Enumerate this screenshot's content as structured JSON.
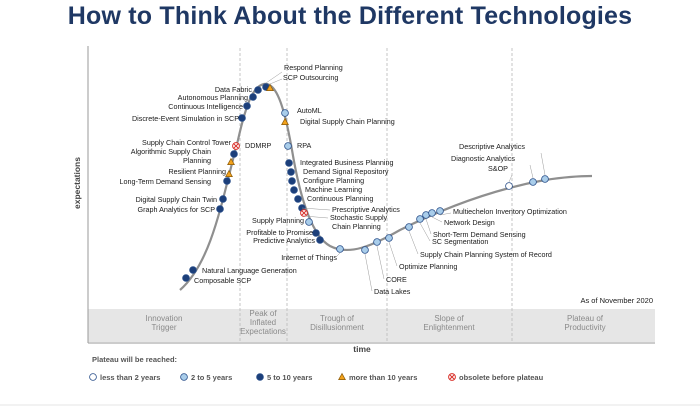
{
  "title": "How to Think About the Different Technologies",
  "axes": {
    "y_label": "expectations",
    "x_label": "time"
  },
  "note": "As of November 2020",
  "phases": [
    {
      "label_lines": [
        "Innovation",
        "Trigger"
      ]
    },
    {
      "label_lines": [
        "Peak of",
        "Inflated",
        "Expectations"
      ]
    },
    {
      "label_lines": [
        "Trough of",
        "Disillusionment"
      ]
    },
    {
      "label_lines": [
        "Slope of",
        "Enlightenment"
      ]
    },
    {
      "label_lines": [
        "Plateau of",
        "Productivity"
      ]
    }
  ],
  "legend": {
    "title": "Plateau will be reached:",
    "items": [
      {
        "label": "less than 2 years",
        "marker": "circle",
        "color": "#ffffff"
      },
      {
        "label": "2 to 5 years",
        "marker": "circle",
        "color": "#a9cdea"
      },
      {
        "label": "5 to 10 years",
        "marker": "circle",
        "color": "#1c3f7a"
      },
      {
        "label": "more than 10 years",
        "marker": "triangle",
        "color": "#f3a21b"
      },
      {
        "label": "obsolete before plateau",
        "marker": "cross",
        "color": "#d9312b"
      }
    ]
  },
  "colors": {
    "title": "#1f3864",
    "curve": "#8f8f8f",
    "phase_band": "#e6e6e6",
    "less_than_2": "#ffffff",
    "two_to_five": "#a9cdea",
    "five_to_ten": "#1c3f7a",
    "more_than_ten": "#f3a21b",
    "obsolete": "#d9312b"
  },
  "technologies": [
    {
      "name": "Composable SCP",
      "plateau": "5 to 10 years"
    },
    {
      "name": "Natural Language Generation",
      "plateau": "5 to 10 years"
    },
    {
      "name": "Graph Analytics for SCP",
      "plateau": "5 to 10 years"
    },
    {
      "name": "Digital Supply Chain Twin",
      "plateau": "5 to 10 years"
    },
    {
      "name": "Long-Term Demand Sensing",
      "plateau": "5 to 10 years"
    },
    {
      "name": "Resilient Planning",
      "plateau": "more than 10 years"
    },
    {
      "name": "Algorithmic Supply Chain Planning",
      "plateau": "more than 10 years"
    },
    {
      "name": "Supply Chain Control Tower",
      "plateau": "5 to 10 years"
    },
    {
      "name": "DDMRP",
      "plateau": "obsolete before plateau"
    },
    {
      "name": "Discrete-Event Simulation in SCP",
      "plateau": "5 to 10 years"
    },
    {
      "name": "Continuous Intelligence",
      "plateau": "5 to 10 years"
    },
    {
      "name": "Autonomous Planning",
      "plateau": "5 to 10 years"
    },
    {
      "name": "Data Fabric",
      "plateau": "5 to 10 years"
    },
    {
      "name": "Respond Planning",
      "plateau": "5 to 10 years"
    },
    {
      "name": "SCP Outsourcing",
      "plateau": "more than 10 years"
    },
    {
      "name": "AutoML",
      "plateau": "2 to 5 years"
    },
    {
      "name": "Digital Supply Chain Planning",
      "plateau": "more than 10 years"
    },
    {
      "name": "RPA",
      "plateau": "2 to 5 years"
    },
    {
      "name": "Integrated Business Planning",
      "plateau": "5 to 10 years"
    },
    {
      "name": "Demand Signal Repository",
      "plateau": "5 to 10 years"
    },
    {
      "name": "Configure Planning",
      "plateau": "5 to 10 years"
    },
    {
      "name": "Machine Learning",
      "plateau": "5 to 10 years"
    },
    {
      "name": "Continuous Planning",
      "plateau": "5 to 10 years"
    },
    {
      "name": "Prescriptive Analytics",
      "plateau": "5 to 10 years"
    },
    {
      "name": "Stochastic Supply Chain Planning",
      "plateau": "obsolete before plateau"
    },
    {
      "name": "Supply Planning",
      "plateau": "2 to 5 years"
    },
    {
      "name": "Profitable to Promise",
      "plateau": "5 to 10 years"
    },
    {
      "name": "Predictive Analytics",
      "plateau": "5 to 10 years"
    },
    {
      "name": "Internet of Things",
      "plateau": "2 to 5 years"
    },
    {
      "name": "Data Lakes",
      "plateau": "2 to 5 years"
    },
    {
      "name": "CORE",
      "plateau": "2 to 5 years"
    },
    {
      "name": "Optimize Planning",
      "plateau": "2 to 5 years"
    },
    {
      "name": "Supply Chain Planning System of Record",
      "plateau": "2 to 5 years"
    },
    {
      "name": "SC Segmentation",
      "plateau": "2 to 5 years"
    },
    {
      "name": "Short-Term Demand Sensing",
      "plateau": "2 to 5 years"
    },
    {
      "name": "Network Design",
      "plateau": "2 to 5 years"
    },
    {
      "name": "Multiechelon Inventory Optimization",
      "plateau": "2 to 5 years"
    },
    {
      "name": "S&OP",
      "plateau": "less than 2 years"
    },
    {
      "name": "Diagnostic Analytics",
      "plateau": "2 to 5 years"
    },
    {
      "name": "Descriptive Analytics",
      "plateau": "2 to 5 years"
    }
  ]
}
